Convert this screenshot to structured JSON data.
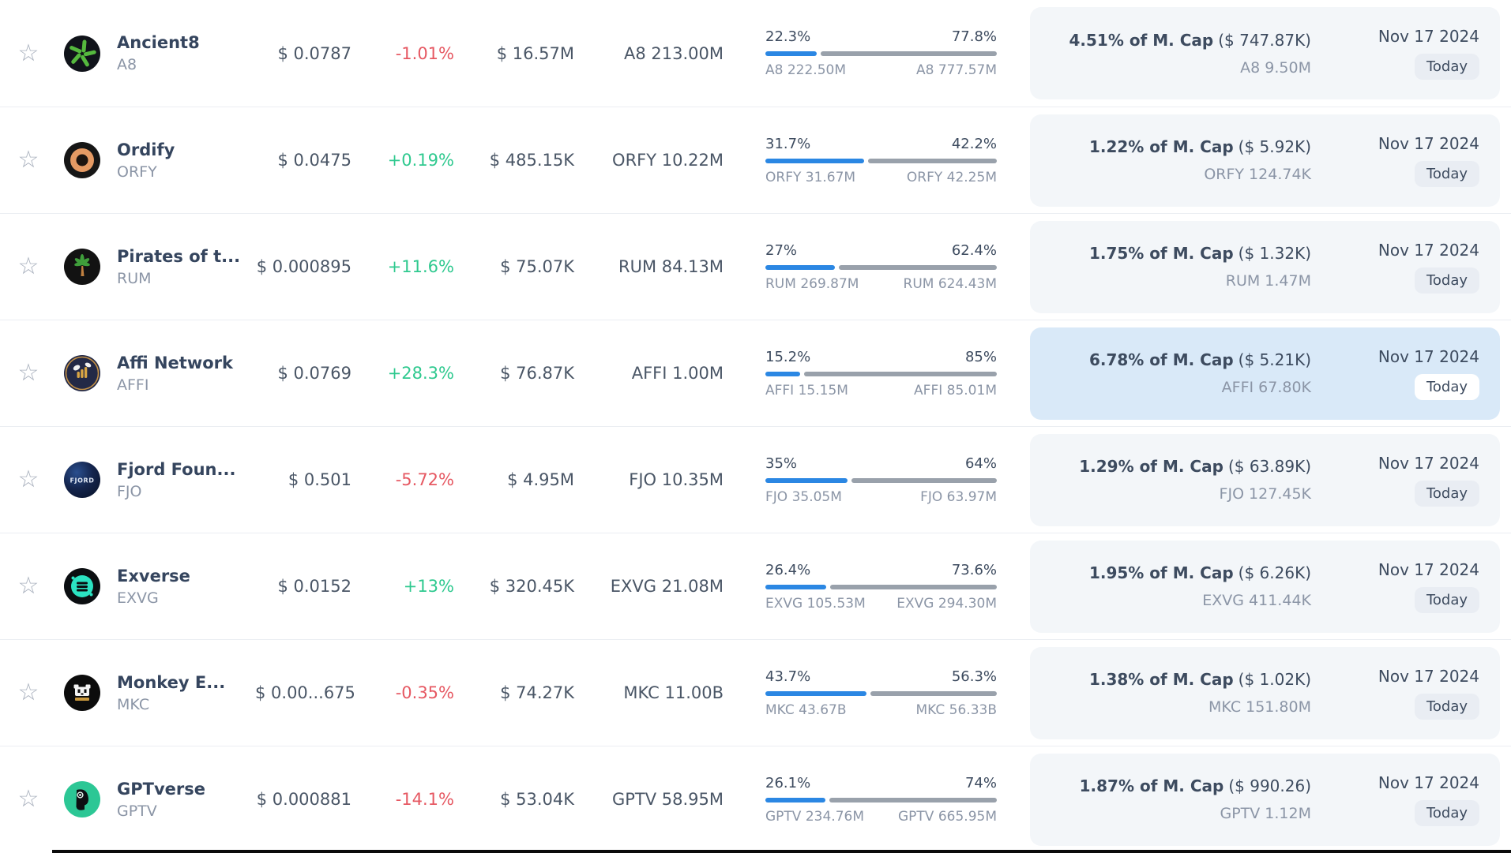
{
  "table": {
    "date_label": "Nov 17 2024",
    "today_label": "Today",
    "colors": {
      "accent_blue": "#2b87e3",
      "positive": "#2fc98f",
      "negative": "#e65862",
      "panel_bg": "#f3f6f9",
      "panel_highlight_bg": "#d9e9f8",
      "bar_rest": "#99a1ab"
    },
    "rows": [
      {
        "name": "Ancient8",
        "symbol": "A8",
        "price": "$ 0.0787",
        "change": "-1.01%",
        "volume": "$ 16.57M",
        "supply": "A8 213.00M",
        "progress": {
          "left_pct": "22.3%",
          "right_pct": "77.8%",
          "left_label": "A8 222.50M",
          "right_label": "A8 777.57M",
          "fill_pct": 22.2
        },
        "mcap": {
          "bold": "4.51% of M. Cap",
          "paren": "($ 747.87K)",
          "sub": "A8 9.50M"
        },
        "logo_icon": "ancient8-pinwheel"
      },
      {
        "name": "Ordify",
        "symbol": "ORFY",
        "price": "$ 0.0475",
        "change": "+0.19%",
        "volume": "$ 485.15K",
        "supply": "ORFY 10.22M",
        "progress": {
          "left_pct": "31.7%",
          "right_pct": "42.2%",
          "left_label": "ORFY 31.67M",
          "right_label": "ORFY 42.25M",
          "fill_pct": 42.8
        },
        "mcap": {
          "bold": "1.22% of M. Cap",
          "paren": "($ 5.92K)",
          "sub": "ORFY 124.74K"
        },
        "logo_icon": "ordify-rings"
      },
      {
        "name": "Pirates of t...",
        "symbol": "RUM",
        "price": "$ 0.000895",
        "change": "+11.6%",
        "volume": "$ 75.07K",
        "supply": "RUM 84.13M",
        "progress": {
          "left_pct": "27%",
          "right_pct": "62.4%",
          "left_label": "RUM 269.87M",
          "right_label": "RUM 624.43M",
          "fill_pct": 30.2
        },
        "mcap": {
          "bold": "1.75% of M. Cap",
          "paren": "($ 1.32K)",
          "sub": "RUM 1.47M"
        },
        "logo_icon": "palm-tree"
      },
      {
        "name": "Affi Network",
        "symbol": "AFFI",
        "price": "$ 0.0769",
        "change": "+28.3%",
        "volume": "$ 76.87K",
        "supply": "AFFI 1.00M",
        "progress": {
          "left_pct": "15.2%",
          "right_pct": "85%",
          "left_label": "AFFI 15.15M",
          "right_label": "AFFI 85.01M",
          "fill_pct": 15.1
        },
        "mcap": {
          "bold": "6.78% of M. Cap",
          "paren": "($ 5.21K)",
          "sub": "AFFI 67.80K"
        },
        "logo_icon": "affi-bee"
      },
      {
        "name": "Fjord Foun...",
        "symbol": "FJO",
        "price": "$ 0.501",
        "change": "-5.72%",
        "volume": "$ 4.95M",
        "supply": "FJO 10.35M",
        "progress": {
          "left_pct": "35%",
          "right_pct": "64%",
          "left_label": "FJO 35.05M",
          "right_label": "FJO 63.97M",
          "fill_pct": 35.4
        },
        "mcap": {
          "bold": "1.29% of M. Cap",
          "paren": "($ 63.89K)",
          "sub": "FJO 127.45K"
        },
        "logo_icon": "fjord-globe",
        "logo_text": "FJORD"
      },
      {
        "name": "Exverse",
        "symbol": "EXVG",
        "price": "$ 0.0152",
        "change": "+13%",
        "volume": "$ 320.45K",
        "supply": "EXVG 21.08M",
        "progress": {
          "left_pct": "26.4%",
          "right_pct": "73.6%",
          "left_label": "EXVG 105.53M",
          "right_label": "EXVG 294.30M",
          "fill_pct": 26.4
        },
        "mcap": {
          "bold": "1.95% of M. Cap",
          "paren": "($ 6.26K)",
          "sub": "EXVG 411.44K"
        },
        "logo_icon": "exverse-disc"
      },
      {
        "name": "Monkey E...",
        "symbol": "MKC",
        "price": "$ 0.00...675",
        "change": "-0.35%",
        "volume": "$ 74.27K",
        "supply": "MKC 11.00B",
        "progress": {
          "left_pct": "43.7%",
          "right_pct": "56.3%",
          "left_label": "MKC 43.67B",
          "right_label": "MKC 56.33B",
          "fill_pct": 43.7
        },
        "mcap": {
          "bold": "1.38% of M. Cap",
          "paren": "($ 1.02K)",
          "sub": "MKC 151.80M"
        },
        "logo_icon": "monkey-face"
      },
      {
        "name": "GPTverse",
        "symbol": "GPTV",
        "price": "$ 0.000881",
        "change": "-14.1%",
        "volume": "$ 53.04K",
        "supply": "GPTV 58.95M",
        "progress": {
          "left_pct": "26.1%",
          "right_pct": "74%",
          "left_label": "GPTV 234.76M",
          "right_label": "GPTV 665.95M",
          "fill_pct": 26.1
        },
        "mcap": {
          "bold": "1.87% of M. Cap",
          "paren": "($ 990.26)",
          "sub": "GPTV 1.12M"
        },
        "logo_icon": "gpt-robot"
      }
    ]
  }
}
